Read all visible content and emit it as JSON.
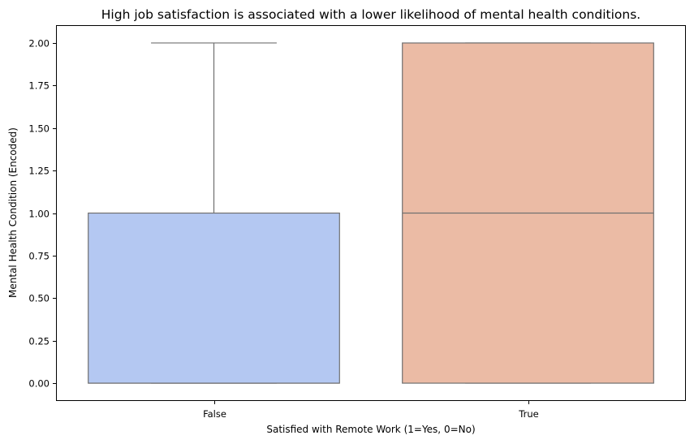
{
  "chart_data": {
    "type": "box",
    "title": "High job satisfaction is associated with a lower likelihood of mental health conditions.",
    "xlabel": "Satisfied with Remote Work (1=Yes, 0=No)",
    "ylabel": "Mental Health Condition (Encoded)",
    "ylim": [
      -0.1,
      2.1
    ],
    "yticks": [
      0.0,
      0.25,
      0.5,
      0.75,
      1.0,
      1.25,
      1.5,
      1.75,
      2.0
    ],
    "ytick_labels": [
      "0.00",
      "0.25",
      "0.50",
      "0.75",
      "1.00",
      "1.25",
      "1.50",
      "1.75",
      "2.00"
    ],
    "categories": [
      "False",
      "True"
    ],
    "boxes": [
      {
        "category": "False",
        "whisker_low": 0,
        "q1": 0,
        "median": 0,
        "q3": 1,
        "whisker_high": 2,
        "color": "#b4c8f2"
      },
      {
        "category": "True",
        "whisker_low": 0,
        "q1": 0,
        "median": 1,
        "q3": 2,
        "whisker_high": 2,
        "color": "#ebbba5"
      }
    ],
    "line_color": "#707070",
    "grid": false,
    "legend": "none"
  }
}
